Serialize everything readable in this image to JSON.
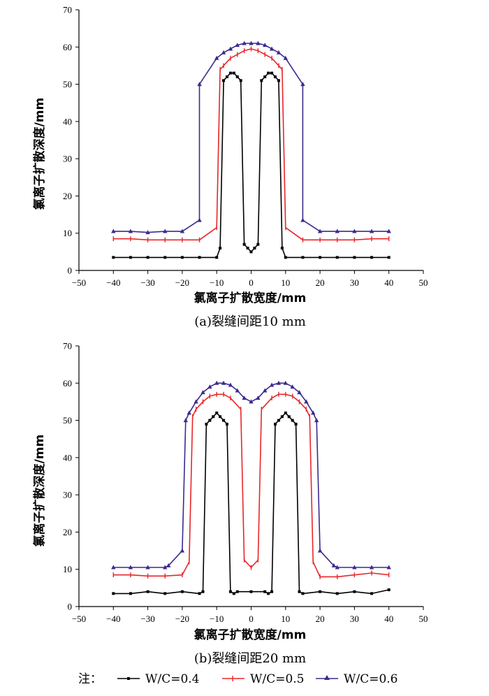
{
  "colors": {
    "wc04": "#000000",
    "wc05": "#e8262a",
    "wc06": "#3b2a8f"
  },
  "chart_data": [
    {
      "type": "line",
      "caption": "(a)裂缝间距10 mm",
      "xlabel": "氯离子扩散宽度/mm",
      "ylabel": "氯离子扩散深度/mm",
      "xlim": [
        -50,
        50
      ],
      "ylim": [
        0,
        70
      ],
      "xticks": [
        -50,
        -40,
        -30,
        -20,
        -10,
        0,
        10,
        20,
        30,
        40,
        50
      ],
      "yticks": [
        0,
        10,
        20,
        30,
        40,
        50,
        60,
        70
      ],
      "series": [
        {
          "name": "W/C=0.4",
          "marker": "square",
          "x": [
            -40,
            -35,
            -30,
            -25,
            -20,
            -15,
            -10,
            -9,
            -8,
            -7,
            -6,
            -5,
            -4,
            -3,
            -2,
            -1,
            0,
            1,
            2,
            3,
            4,
            5,
            6,
            7,
            8,
            9,
            10,
            15,
            20,
            25,
            30,
            35,
            40
          ],
          "y": [
            3.5,
            3.5,
            3.5,
            3.5,
            3.5,
            3.5,
            3.5,
            6,
            51,
            52,
            53,
            53,
            52,
            51,
            7,
            6,
            5,
            6,
            7,
            51,
            52,
            53,
            53,
            52,
            51,
            6,
            3.5,
            3.5,
            3.5,
            3.5,
            3.5,
            3.5,
            3.5
          ]
        },
        {
          "name": "W/C=0.5",
          "marker": "dash",
          "x": [
            -40,
            -35,
            -30,
            -25,
            -20,
            -15,
            -10,
            -9,
            -8,
            -6,
            -4,
            -2,
            0,
            2,
            4,
            6,
            8,
            9,
            10,
            15,
            20,
            25,
            30,
            35,
            40
          ],
          "y": [
            8.5,
            8.5,
            8.2,
            8.2,
            8.2,
            8.2,
            11.5,
            54,
            55,
            57,
            58,
            59,
            59.5,
            59,
            58,
            57,
            55,
            54,
            11.5,
            8.2,
            8.2,
            8.2,
            8.2,
            8.5,
            8.5
          ]
        },
        {
          "name": "W/C=0.6",
          "marker": "triangle",
          "x": [
            -40,
            -35,
            -30,
            -25,
            -20,
            -15,
            -15,
            -10,
            -8,
            -6,
            -4,
            -2,
            0,
            2,
            4,
            6,
            8,
            10,
            15,
            15,
            20,
            25,
            30,
            35,
            40
          ],
          "y": [
            10.5,
            10.5,
            10.2,
            10.5,
            10.5,
            13.5,
            50,
            57,
            58.5,
            59.5,
            60.5,
            61,
            61,
            61,
            60.5,
            59.5,
            58.5,
            57,
            50,
            13.5,
            10.5,
            10.5,
            10.5,
            10.5,
            10.5
          ]
        }
      ]
    },
    {
      "type": "line",
      "caption": "(b)裂缝间距20 mm",
      "xlabel": "氯离子扩散宽度/mm",
      "ylabel": "氯离子扩散深度/mm",
      "xlim": [
        -50,
        50
      ],
      "ylim": [
        0,
        70
      ],
      "xticks": [
        -50,
        -40,
        -30,
        -20,
        -10,
        0,
        10,
        20,
        30,
        40,
        50
      ],
      "yticks": [
        0,
        10,
        20,
        30,
        40,
        50,
        60,
        70
      ],
      "series": [
        {
          "name": "W/C=0.4",
          "marker": "square",
          "x": [
            -40,
            -35,
            -30,
            -25,
            -20,
            -15,
            -14,
            -13,
            -12,
            -11,
            -10,
            -9,
            -8,
            -7,
            -6,
            -5,
            -4,
            0,
            4,
            5,
            6,
            7,
            8,
            9,
            10,
            11,
            12,
            13,
            14,
            15,
            20,
            25,
            30,
            35,
            40
          ],
          "y": [
            3.5,
            3.5,
            4,
            3.5,
            4,
            3.5,
            4,
            49,
            50,
            51,
            52,
            51,
            50,
            49,
            4,
            3.5,
            4,
            4,
            4,
            3.5,
            4,
            49,
            50,
            51,
            52,
            51,
            50,
            49,
            4,
            3.5,
            4,
            3.5,
            4,
            3.5,
            4.5
          ]
        },
        {
          "name": "W/C=0.5",
          "marker": "dash",
          "x": [
            -40,
            -35,
            -30,
            -25,
            -20,
            -18,
            -17,
            -16,
            -14,
            -12,
            -10,
            -8,
            -6,
            -3,
            -2,
            0,
            2,
            3,
            6,
            8,
            10,
            12,
            14,
            16,
            17,
            18,
            20,
            25,
            30,
            35,
            40
          ],
          "y": [
            8.5,
            8.5,
            8.2,
            8.2,
            8.5,
            12,
            51,
            53,
            55,
            56.5,
            57,
            57,
            56,
            53,
            12.5,
            10.5,
            12.5,
            53,
            56,
            57,
            57,
            56.5,
            55,
            53,
            51,
            12,
            8,
            8,
            8.5,
            9,
            8.5
          ]
        },
        {
          "name": "W/C=0.6",
          "marker": "triangle",
          "x": [
            -40,
            -35,
            -30,
            -25,
            -24,
            -20,
            -19,
            -18,
            -16,
            -14,
            -12,
            -10,
            -8,
            -6,
            -4,
            -2,
            0,
            2,
            4,
            6,
            8,
            10,
            12,
            14,
            16,
            18,
            19,
            20,
            24,
            25,
            30,
            35,
            40
          ],
          "y": [
            10.5,
            10.5,
            10.5,
            10.5,
            11,
            15,
            50,
            52,
            55,
            57.5,
            59,
            60,
            60,
            59.5,
            58,
            56,
            55,
            56,
            58,
            59.5,
            60,
            60,
            59,
            57.5,
            55,
            52,
            50,
            15,
            11,
            10.5,
            10.5,
            10.5,
            10.5
          ]
        }
      ]
    }
  ],
  "legend": {
    "prefix": "注：",
    "items": [
      "W/C=0.4",
      "W/C=0.5",
      "W/C=0.6"
    ]
  }
}
